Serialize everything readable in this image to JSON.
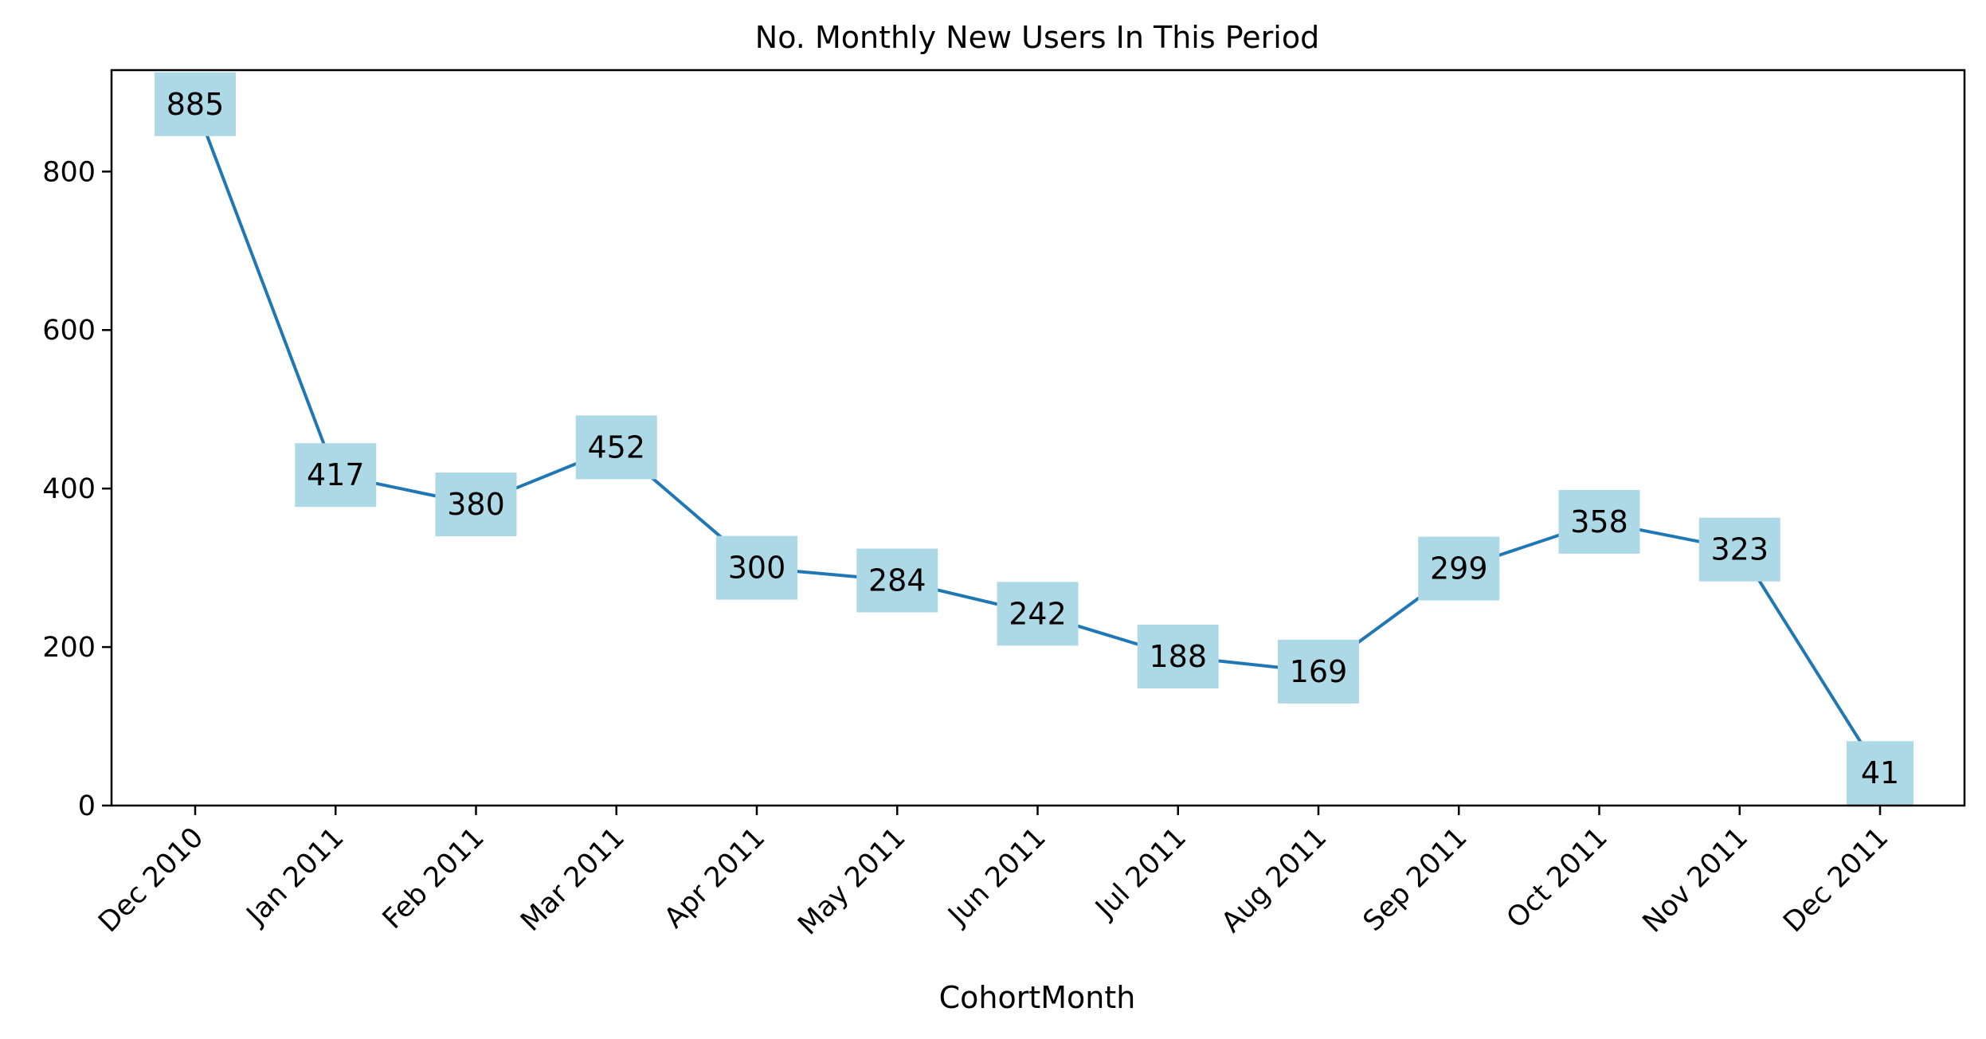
{
  "chart_data": {
    "type": "line",
    "title": "No. Monthly New Users In This Period",
    "xlabel": "CohortMonth",
    "ylabel": "",
    "categories": [
      "Dec 2010",
      "Jan 2011",
      "Feb 2011",
      "Mar 2011",
      "Apr 2011",
      "May 2011",
      "Jun 2011",
      "Jul 2011",
      "Aug 2011",
      "Sep 2011",
      "Oct 2011",
      "Nov 2011",
      "Dec 2011"
    ],
    "values": [
      885,
      417,
      380,
      452,
      300,
      284,
      242,
      188,
      169,
      299,
      358,
      323,
      41
    ],
    "data_labels": [
      "885",
      "417",
      "380",
      "452",
      "300",
      "284",
      "242",
      "188",
      "169",
      "299",
      "358",
      "323",
      "41"
    ],
    "ylim": [
      0,
      928
    ],
    "yticks": [
      0,
      200,
      400,
      600,
      800
    ],
    "ytick_labels": [
      "0",
      "200",
      "400",
      "600",
      "800"
    ],
    "grid": false,
    "legend": "none",
    "line_color": "#1f77b4",
    "label_box_color": "#add8e6"
  }
}
